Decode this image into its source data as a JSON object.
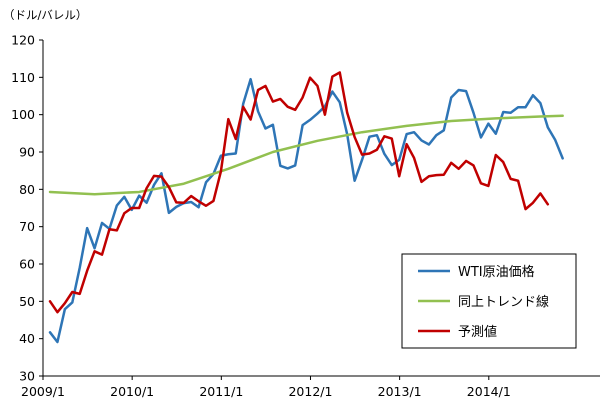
{
  "chart_data": {
    "type": "line",
    "title": "",
    "ylabel": "（ドル/バレル）",
    "xlabel": "",
    "ylim": [
      30,
      120
    ],
    "yticks": [
      30,
      40,
      50,
      60,
      70,
      80,
      90,
      100,
      110,
      120
    ],
    "x_tick_labels": [
      "2009/1",
      "2010/1",
      "2011/1",
      "2012/1",
      "2013/1",
      "2014/1"
    ],
    "x_start": "2009/1",
    "grid": false,
    "legend_position": "bottom-right",
    "series": [
      {
        "name": "WTI原油価格",
        "color": "#2e75b6",
        "x": [
          "2009/1",
          "2009/2",
          "2009/3",
          "2009/4",
          "2009/5",
          "2009/6",
          "2009/7",
          "2009/8",
          "2009/9",
          "2009/10",
          "2009/11",
          "2009/12",
          "2010/1",
          "2010/2",
          "2010/3",
          "2010/4",
          "2010/5",
          "2010/6",
          "2010/7",
          "2010/8",
          "2010/9",
          "2010/10",
          "2010/11",
          "2010/12",
          "2011/1",
          "2011/2",
          "2011/3",
          "2011/4",
          "2011/5",
          "2011/6",
          "2011/7",
          "2011/8",
          "2011/9",
          "2011/10",
          "2011/11",
          "2011/12",
          "2012/1",
          "2012/2",
          "2012/3",
          "2012/4",
          "2012/5",
          "2012/6",
          "2012/7",
          "2012/8",
          "2012/9",
          "2012/10",
          "2012/11",
          "2012/12",
          "2013/1",
          "2013/2",
          "2013/3",
          "2013/4",
          "2013/5",
          "2013/6",
          "2013/7",
          "2013/8",
          "2013/9",
          "2013/10",
          "2013/11",
          "2013/12",
          "2014/1",
          "2014/2",
          "2014/3",
          "2014/4",
          "2014/5",
          "2014/6",
          "2014/7",
          "2014/8",
          "2014/9",
          "2014/10"
        ],
        "values": [
          41.7,
          39.1,
          47.9,
          49.7,
          59.0,
          69.6,
          64.2,
          71.0,
          69.4,
          75.7,
          78.0,
          74.5,
          78.3,
          76.4,
          81.2,
          84.3,
          73.7,
          75.3,
          76.3,
          76.6,
          75.2,
          81.9,
          84.1,
          89.0,
          89.4,
          89.6,
          102.9,
          109.5,
          100.9,
          96.3,
          97.3,
          86.3,
          85.6,
          86.4,
          97.2,
          98.6,
          100.3,
          102.2,
          106.2,
          103.3,
          94.7,
          82.3,
          87.9,
          94.1,
          94.5,
          89.5,
          86.5,
          87.9,
          94.8,
          95.3,
          93.1,
          92.0,
          94.5,
          95.8,
          104.6,
          106.6,
          106.3,
          100.5,
          93.9,
          97.6,
          94.9,
          100.7,
          100.5,
          102.0,
          102.0,
          105.2,
          103.1,
          96.6,
          93.2,
          88.3
        ]
      },
      {
        "name": "同上トレンド線",
        "color": "#92c050",
        "x": [
          "2009/1",
          "2009/7",
          "2010/1",
          "2010/7",
          "2011/1",
          "2011/7",
          "2012/1",
          "2012/7",
          "2013/1",
          "2013/7",
          "2014/1",
          "2014/7",
          "2014/10"
        ],
        "values": [
          79.3,
          78.7,
          79.3,
          81.5,
          85.5,
          90.0,
          93.0,
          95.3,
          97.0,
          98.3,
          99.0,
          99.5,
          99.7
        ]
      },
      {
        "name": "予測値",
        "color": "#c00000",
        "x": [
          "2009/1",
          "2009/2",
          "2009/3",
          "2009/4",
          "2009/5",
          "2009/6",
          "2009/7",
          "2009/8",
          "2009/9",
          "2009/10",
          "2009/11",
          "2009/12",
          "2010/1",
          "2010/2",
          "2010/3",
          "2010/4",
          "2010/5",
          "2010/6",
          "2010/7",
          "2010/8",
          "2010/9",
          "2010/10",
          "2010/11",
          "2010/12",
          "2011/1",
          "2011/2",
          "2011/3",
          "2011/4",
          "2011/5",
          "2011/6",
          "2011/7",
          "2011/8",
          "2011/9",
          "2011/10",
          "2011/11",
          "2011/12",
          "2012/1",
          "2012/2",
          "2012/3",
          "2012/4",
          "2012/5",
          "2012/6",
          "2012/7",
          "2012/8",
          "2012/9",
          "2012/10",
          "2012/11",
          "2012/12",
          "2013/1",
          "2013/2",
          "2013/3",
          "2013/4",
          "2013/5",
          "2013/6",
          "2013/7",
          "2013/8",
          "2013/9",
          "2013/10",
          "2013/11",
          "2013/12",
          "2014/1",
          "2014/2",
          "2014/3",
          "2014/4",
          "2014/5",
          "2014/6",
          "2014/7",
          "2014/8",
          "2014/9"
        ],
        "values": [
          50.0,
          47.1,
          49.5,
          52.5,
          52.0,
          58.2,
          63.4,
          62.5,
          69.3,
          69.0,
          73.6,
          75.0,
          75.0,
          80.3,
          83.6,
          83.4,
          80.6,
          76.5,
          76.4,
          78.2,
          76.8,
          75.6,
          76.9,
          84.8,
          98.8,
          93.5,
          102.1,
          98.7,
          106.6,
          107.7,
          103.5,
          104.2,
          102.1,
          101.3,
          104.6,
          109.9,
          107.7,
          100.0,
          110.2,
          111.3,
          100.5,
          94.0,
          89.3,
          89.6,
          90.6,
          94.2,
          93.6,
          83.5,
          92.1,
          88.4,
          82.0,
          83.5,
          83.8,
          83.9,
          87.1,
          85.5,
          87.6,
          86.4,
          81.6,
          80.9,
          89.2,
          87.3,
          82.8,
          82.3,
          74.7,
          76.4,
          78.9,
          76.0,
          null
        ]
      }
    ]
  }
}
